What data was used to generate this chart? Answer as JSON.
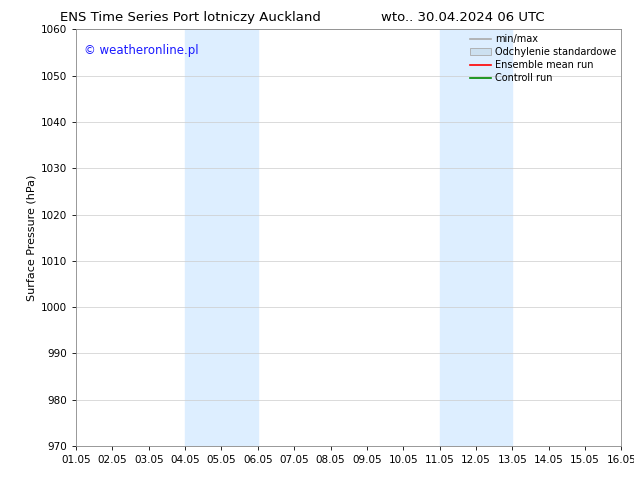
{
  "title_left": "ENS Time Series Port lotniczy Auckland",
  "title_right": "wto.. 30.04.2024 06 UTC",
  "ylabel": "Surface Pressure (hPa)",
  "ylim": [
    970,
    1060
  ],
  "yticks": [
    970,
    980,
    990,
    1000,
    1010,
    1020,
    1030,
    1040,
    1050,
    1060
  ],
  "xtick_labels": [
    "01.05",
    "02.05",
    "03.05",
    "04.05",
    "05.05",
    "06.05",
    "07.05",
    "08.05",
    "09.05",
    "10.05",
    "11.05",
    "12.05",
    "13.05",
    "14.05",
    "15.05",
    "16.05"
  ],
  "watermark": "© weatheronline.pl",
  "watermark_color": "#1a1aff",
  "bg_color": "#ffffff",
  "plot_bg_color": "#ffffff",
  "shaded_regions": [
    {
      "xstart": 3,
      "xend": 5,
      "color": "#ddeeff"
    },
    {
      "xstart": 10,
      "xend": 12,
      "color": "#ddeeff"
    }
  ],
  "legend_entries": [
    {
      "label": "min/max",
      "color": "#aaaaaa",
      "lw": 1.2,
      "type": "line"
    },
    {
      "label": "Odchylenie standardowe",
      "color": "#cce0f0",
      "edgecolor": "#aaaaaa",
      "type": "patch"
    },
    {
      "label": "Ensemble mean run",
      "color": "#ff0000",
      "lw": 1.2,
      "type": "line"
    },
    {
      "label": "Controll run",
      "color": "#008800",
      "lw": 1.2,
      "type": "line"
    }
  ],
  "grid_color": "#cccccc",
  "spine_color": "#888888",
  "title_fontsize": 9.5,
  "tick_fontsize": 7.5,
  "ylabel_fontsize": 8,
  "watermark_fontsize": 8.5,
  "legend_fontsize": 7
}
